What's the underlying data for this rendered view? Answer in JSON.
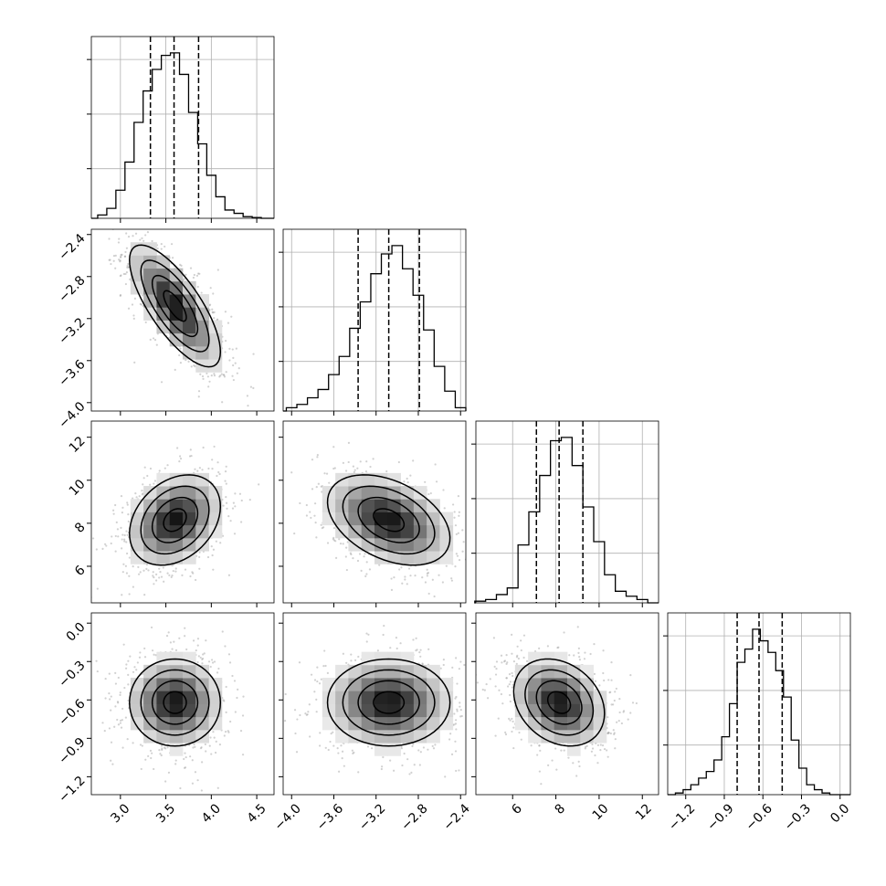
{
  "chart_data": {
    "type": "corner",
    "title": "",
    "grid": true,
    "parameters": [
      {
        "name": "",
        "range": [
          2.68,
          4.69
        ],
        "ticks": [
          "3.0",
          "3.5",
          "4.0",
          "4.5"
        ],
        "quantiles": [
          3.33,
          3.59,
          3.86
        ],
        "hist_bins": [
          [
            2.8,
            0.02
          ],
          [
            2.9,
            0.06
          ],
          [
            3.0,
            0.17
          ],
          [
            3.1,
            0.34
          ],
          [
            3.2,
            0.58
          ],
          [
            3.3,
            0.77
          ],
          [
            3.4,
            0.9
          ],
          [
            3.5,
            0.985
          ],
          [
            3.6,
            1.0
          ],
          [
            3.7,
            0.87
          ],
          [
            3.8,
            0.64
          ],
          [
            3.9,
            0.45
          ],
          [
            4.0,
            0.26
          ],
          [
            4.1,
            0.13
          ],
          [
            4.2,
            0.05
          ],
          [
            4.3,
            0.03
          ],
          [
            4.4,
            0.01
          ],
          [
            4.5,
            0.005
          ]
        ]
      },
      {
        "name": "",
        "range": [
          -4.08,
          -2.35
        ],
        "ticks": [
          "−4.0",
          "−3.6",
          "−3.2",
          "−2.8",
          "−2.4"
        ],
        "quantiles": [
          -3.37,
          -3.08,
          -2.79
        ],
        "hist_bins": [
          [
            -4.0,
            0.02
          ],
          [
            -3.9,
            0.04
          ],
          [
            -3.8,
            0.08
          ],
          [
            -3.7,
            0.13
          ],
          [
            -3.6,
            0.22
          ],
          [
            -3.5,
            0.33
          ],
          [
            -3.4,
            0.5
          ],
          [
            -3.3,
            0.66
          ],
          [
            -3.2,
            0.83
          ],
          [
            -3.1,
            0.95
          ],
          [
            -3.0,
            1.0
          ],
          [
            -2.9,
            0.86
          ],
          [
            -2.8,
            0.7
          ],
          [
            -2.7,
            0.49
          ],
          [
            -2.6,
            0.27
          ],
          [
            -2.5,
            0.12
          ],
          [
            -2.4,
            0.02
          ]
        ]
      },
      {
        "name": "",
        "range": [
          4.3,
          12.75
        ],
        "ticks": [
          "6",
          "8",
          "10",
          "12"
        ],
        "quantiles": [
          7.1,
          8.15,
          9.25
        ],
        "hist_bins": [
          [
            4.5,
            0.01
          ],
          [
            5.0,
            0.02
          ],
          [
            5.5,
            0.05
          ],
          [
            6.0,
            0.09
          ],
          [
            6.5,
            0.35
          ],
          [
            7.0,
            0.55
          ],
          [
            7.5,
            0.77
          ],
          [
            8.0,
            0.98
          ],
          [
            8.5,
            1.0
          ],
          [
            9.0,
            0.83
          ],
          [
            9.5,
            0.58
          ],
          [
            10.0,
            0.37
          ],
          [
            10.5,
            0.17
          ],
          [
            11.0,
            0.07
          ],
          [
            11.5,
            0.04
          ],
          [
            12.0,
            0.02
          ]
        ]
      },
      {
        "name": "",
        "range": [
          -1.34,
          0.08
        ],
        "ticks": [
          "−1.2",
          "−0.9",
          "−0.6",
          "−0.3",
          "0.0"
        ],
        "quantiles": [
          -0.8,
          -0.63,
          -0.45
        ],
        "hist_bins": [
          [
            -1.25,
            0.01
          ],
          [
            -1.19,
            0.03
          ],
          [
            -1.13,
            0.06
          ],
          [
            -1.07,
            0.1
          ],
          [
            -1.01,
            0.14
          ],
          [
            -0.95,
            0.21
          ],
          [
            -0.89,
            0.35
          ],
          [
            -0.83,
            0.55
          ],
          [
            -0.77,
            0.8
          ],
          [
            -0.71,
            0.88
          ],
          [
            -0.65,
            1.0
          ],
          [
            -0.59,
            0.93
          ],
          [
            -0.53,
            0.86
          ],
          [
            -0.47,
            0.75
          ],
          [
            -0.41,
            0.59
          ],
          [
            -0.35,
            0.33
          ],
          [
            -0.29,
            0.16
          ],
          [
            -0.23,
            0.06
          ],
          [
            -0.17,
            0.03
          ],
          [
            -0.11,
            0.01
          ]
        ]
      }
    ],
    "pairs": [
      {
        "row": 1,
        "col": 0,
        "center": [
          3.6,
          -3.08
        ],
        "sigma": [
          0.25,
          0.29
        ],
        "corr": -0.75
      },
      {
        "row": 2,
        "col": 0,
        "center": [
          3.6,
          8.15
        ],
        "sigma": [
          0.25,
          1.05
        ],
        "corr": 0.3
      },
      {
        "row": 2,
        "col": 1,
        "center": [
          -3.08,
          8.15
        ],
        "sigma": [
          0.29,
          1.05
        ],
        "corr": -0.4
      },
      {
        "row": 3,
        "col": 0,
        "center": [
          3.6,
          -0.62
        ],
        "sigma": [
          0.25,
          0.17
        ],
        "corr": 0.0
      },
      {
        "row": 3,
        "col": 1,
        "center": [
          -3.08,
          -0.62
        ],
        "sigma": [
          0.29,
          0.17
        ],
        "corr": 0.0
      },
      {
        "row": 3,
        "col": 2,
        "center": [
          8.15,
          -0.62
        ],
        "sigma": [
          1.05,
          0.17
        ],
        "corr": -0.25
      }
    ],
    "contour_levels_sigma": [
      0.5,
      1.0,
      1.5,
      2.0
    ]
  }
}
